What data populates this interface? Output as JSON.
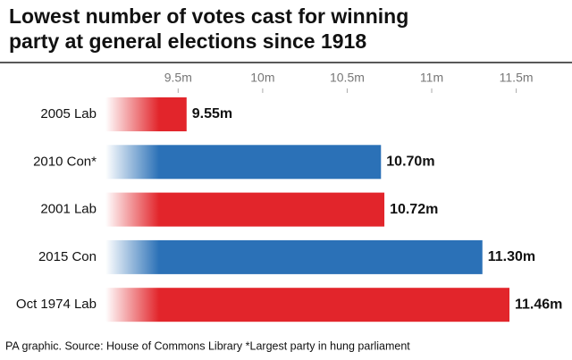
{
  "chart_data": {
    "type": "hbar",
    "title": "Lowest number of votes cast for winning party at general elections since 1918",
    "categories": [
      "2005 Lab",
      "2010 Con*",
      "2001 Lab",
      "2015 Con",
      "Oct 1974 Lab"
    ],
    "values": [
      9.55,
      10.7,
      10.72,
      11.3,
      11.46
    ],
    "value_labels": [
      "9.55m",
      "10.70m",
      "10.72m",
      "11.30m",
      "11.46m"
    ],
    "colors": [
      "#e2252b",
      "#2b71b7",
      "#e2252b",
      "#2b71b7",
      "#e2252b"
    ],
    "xlim": [
      9.07,
      11.83
    ],
    "xticks": [
      {
        "value": 9.5,
        "label": "9.5m"
      },
      {
        "value": 10,
        "label": "10m"
      },
      {
        "value": 10.5,
        "label": "10.5m"
      },
      {
        "value": 11,
        "label": "11m"
      },
      {
        "value": 11.5,
        "label": "11.5m"
      }
    ],
    "footnote": "PA graphic. Source: House of Commons Library *Largest party in hung parliament"
  }
}
